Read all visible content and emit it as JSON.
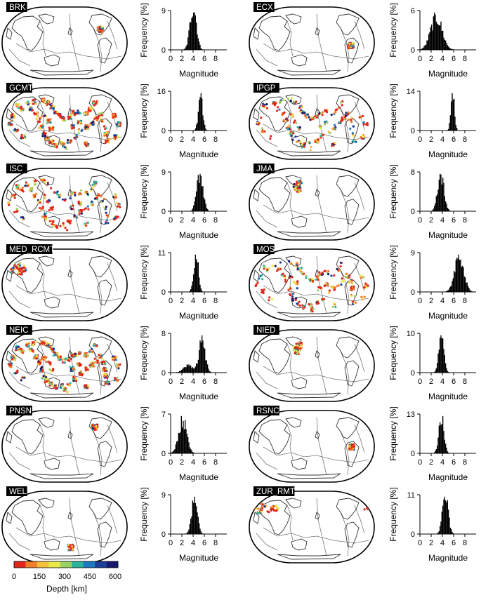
{
  "figure": {
    "freq_label": "Frequency [%]",
    "mag_label": "Magnitude",
    "x_ticks": [
      "0",
      "2",
      "4",
      "6",
      "8"
    ]
  },
  "colorbar": {
    "label": "Depth [km]",
    "ticks": [
      "0",
      "150",
      "300",
      "450",
      "600"
    ],
    "colors": [
      "#e3261b",
      "#f07d2a",
      "#f6c03a",
      "#e9e94a",
      "#9bd066",
      "#2bb49a",
      "#1c79c0",
      "#1c3f9c",
      "#14196f"
    ]
  },
  "colors": {
    "land": "#ffffff",
    "coast": "#333333",
    "plate": "#777777",
    "bar": "#000000",
    "label_bg": "#000000",
    "label_text": "#ffffff"
  },
  "chart_data": [
    {
      "type": "bar",
      "agency": "BRK",
      "ymax": "9",
      "xlim": [
        0,
        10
      ],
      "mean": 4.0,
      "sd": 0.55,
      "skew": 0.4,
      "ylabel": "Frequency [%]",
      "xlabel": "Magnitude",
      "map": {
        "density": "low",
        "regions": [
          "california"
        ]
      }
    },
    {
      "type": "bar",
      "agency": "ECX",
      "ymax": "6",
      "xlim": [
        0,
        10
      ],
      "mean": 2.9,
      "sd": 1.0,
      "skew": 0.3,
      "ylabel": "Frequency [%]",
      "xlabel": "Magnitude",
      "map": {
        "density": "low",
        "regions": [
          "ecuador"
        ]
      }
    },
    {
      "type": "bar",
      "agency": "GCMT",
      "ymax": "16",
      "xlim": [
        0,
        10
      ],
      "mean": 5.3,
      "sd": 0.38,
      "skew": 1.0,
      "ylabel": "Frequency [%]",
      "xlabel": "Magnitude",
      "map": {
        "density": "high",
        "regions": [
          "global"
        ]
      }
    },
    {
      "type": "bar",
      "agency": "IPGP",
      "ymax": "14",
      "xlim": [
        0,
        10
      ],
      "mean": 5.8,
      "sd": 0.3,
      "skew": 1.0,
      "ylabel": "Frequency [%]",
      "xlabel": "Magnitude",
      "map": {
        "density": "medium",
        "regions": [
          "global"
        ]
      }
    },
    {
      "type": "bar",
      "agency": "ISC",
      "ymax": "9",
      "xlim": [
        0,
        10
      ],
      "mean": 5.2,
      "sd": 0.55,
      "skew": 0.3,
      "ylabel": "Frequency [%]",
      "xlabel": "Magnitude",
      "map": {
        "density": "medium",
        "regions": [
          "global"
        ]
      }
    },
    {
      "type": "bar",
      "agency": "JMA",
      "ymax": "8",
      "xlim": [
        0,
        10
      ],
      "mean": 3.7,
      "sd": 0.55,
      "skew": 0.5,
      "ylabel": "Frequency [%]",
      "xlabel": "Magnitude",
      "map": {
        "density": "low",
        "regions": [
          "japan"
        ]
      }
    },
    {
      "type": "bar",
      "agency": "MED_RCMT",
      "ymax": "11",
      "xlim": [
        0,
        10
      ],
      "mean": 4.5,
      "sd": 0.4,
      "skew": 0.6,
      "ylabel": "Frequency [%]",
      "xlabel": "Magnitude",
      "map": {
        "density": "low",
        "regions": [
          "mediterranean"
        ]
      }
    },
    {
      "type": "bar",
      "agency": "MOS",
      "ymax": "9",
      "xlim": [
        0,
        10
      ],
      "mean": 7.0,
      "sd": 0.8,
      "skew": 0.0,
      "ylabel": "Frequency [%]",
      "xlabel": "Magnitude",
      "map": {
        "density": "medium",
        "regions": [
          "global"
        ]
      }
    },
    {
      "type": "bar",
      "agency": "NEIC",
      "ymax": "8",
      "xlim": [
        0,
        10
      ],
      "mean": 5.6,
      "sd": 0.55,
      "skew": 0.0,
      "ylabel": "Frequency [%]",
      "xlabel": "Magnitude",
      "secondary": {
        "mean": 3.2,
        "sd": 0.9,
        "weight": 0.22
      },
      "map": {
        "density": "high",
        "regions": [
          "global"
        ]
      }
    },
    {
      "type": "bar",
      "agency": "NIED",
      "ymax": "10",
      "xlim": [
        0,
        10
      ],
      "mean": 3.8,
      "sd": 0.45,
      "skew": 0.5,
      "ylabel": "Frequency [%]",
      "xlabel": "Magnitude",
      "map": {
        "density": "low",
        "regions": [
          "japan"
        ]
      }
    },
    {
      "type": "bar",
      "agency": "PNSN",
      "ymax": "7",
      "xlim": [
        0,
        10
      ],
      "mean": 2.1,
      "sd": 0.7,
      "skew": 0.4,
      "ylabel": "Frequency [%]",
      "xlabel": "Magnitude",
      "map": {
        "density": "low",
        "regions": [
          "pacificnw"
        ]
      }
    },
    {
      "type": "bar",
      "agency": "RSNC",
      "ymax": "13",
      "xlim": [
        0,
        10
      ],
      "mean": 3.8,
      "sd": 0.45,
      "skew": 0.3,
      "ylabel": "Frequency [%]",
      "xlabel": "Magnitude",
      "map": {
        "density": "low",
        "regions": [
          "colombia"
        ]
      }
    },
    {
      "type": "bar",
      "agency": "WEL",
      "ymax": "9",
      "xlim": [
        0,
        10
      ],
      "mean": 4.2,
      "sd": 0.5,
      "skew": 0.5,
      "ylabel": "Frequency [%]",
      "xlabel": "Magnitude",
      "map": {
        "density": "low",
        "regions": [
          "newzealand"
        ]
      }
    },
    {
      "type": "bar",
      "agency": "ZUR_RMT",
      "ymax": "11",
      "xlim": [
        0,
        10
      ],
      "mean": 4.5,
      "sd": 0.5,
      "skew": 0.3,
      "ylabel": "Frequency [%]",
      "xlabel": "Magnitude",
      "map": {
        "density": "low",
        "regions": [
          "europe"
        ]
      }
    }
  ]
}
